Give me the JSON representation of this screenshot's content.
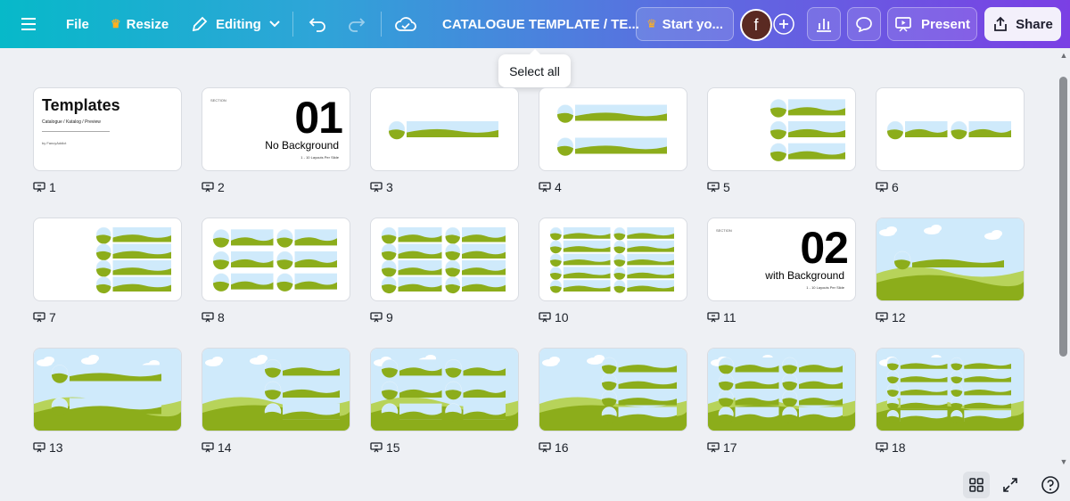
{
  "topbar": {
    "file_label": "File",
    "resize_label": "Resize",
    "editing_label": "Editing",
    "title": "CATALOGUE TEMPLATE / TE...",
    "start_label": "Start yo...",
    "avatar_letter": "f",
    "present_label": "Present",
    "share_label": "Share"
  },
  "tooltip": {
    "text": "Select all"
  },
  "colors": {
    "accent_start": "#07b9c9",
    "accent_end": "#7b3fe4",
    "sky": "#cfeafb",
    "grass": "#8cad1b"
  },
  "slides": [
    {
      "number": "1",
      "kind": "cover",
      "title": "Templates",
      "subtitle": "Catalogue  /  Katalog  /  Preview",
      "byline": "by FancyAddict"
    },
    {
      "number": "2",
      "kind": "section",
      "section_label": "SECTION",
      "big_number": "01",
      "caption": "No Background",
      "tiny": "1 - 10 Layouts Per Slide"
    },
    {
      "number": "3",
      "kind": "layout",
      "cols": 1,
      "rows": 1
    },
    {
      "number": "4",
      "kind": "layout",
      "cols": 1,
      "rows": 2
    },
    {
      "number": "5",
      "kind": "layout",
      "cols": 1,
      "rows": 3,
      "offset": "right"
    },
    {
      "number": "6",
      "kind": "layout",
      "cols": 2,
      "rows": 1
    },
    {
      "number": "7",
      "kind": "layout",
      "cols": 1,
      "rows": 4,
      "offset": "right"
    },
    {
      "number": "8",
      "kind": "layout",
      "cols": 2,
      "rows": 3
    },
    {
      "number": "9",
      "kind": "layout",
      "cols": 2,
      "rows": 4
    },
    {
      "number": "10",
      "kind": "layout",
      "cols": 2,
      "rows": 5
    },
    {
      "number": "11",
      "kind": "section",
      "section_label": "SECTION",
      "big_number": "02",
      "caption": "with Background",
      "tiny": "1 - 10 Layouts Per Slide"
    },
    {
      "number": "12",
      "kind": "bg",
      "cols": 1,
      "rows": 1
    },
    {
      "number": "13",
      "kind": "bg",
      "cols": 1,
      "rows": 2
    },
    {
      "number": "14",
      "kind": "bg",
      "cols": 1,
      "rows": 3,
      "offset": "right"
    },
    {
      "number": "15",
      "kind": "bg",
      "cols": 2,
      "rows": 3
    },
    {
      "number": "16",
      "kind": "bg",
      "cols": 1,
      "rows": 4,
      "offset": "right"
    },
    {
      "number": "17",
      "kind": "bg",
      "cols": 2,
      "rows": 4
    },
    {
      "number": "18",
      "kind": "bg",
      "cols": 2,
      "rows": 5
    }
  ],
  "bottom": {
    "grid_icon": "grid-view-icon",
    "expand_icon": "expand-icon",
    "help_icon": "help-icon"
  }
}
